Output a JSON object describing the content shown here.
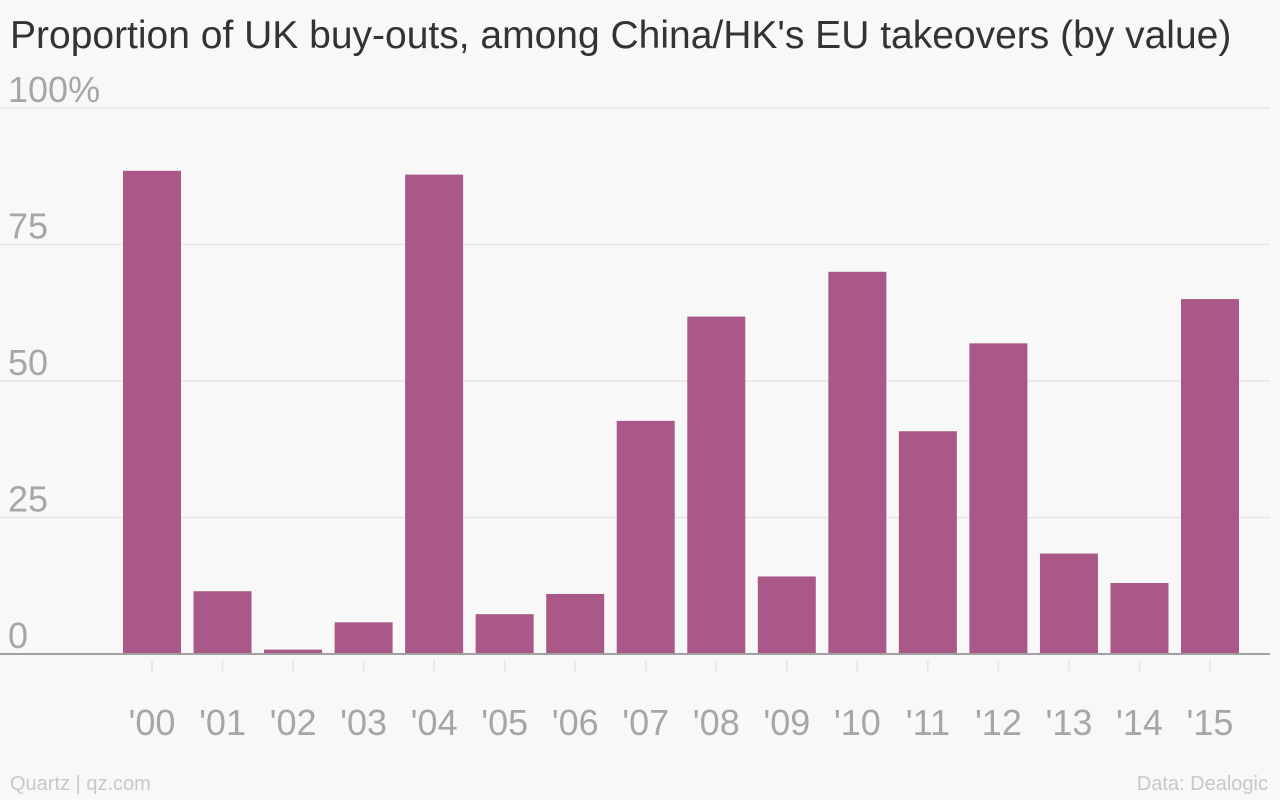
{
  "chart_data": {
    "type": "bar",
    "title": "Proportion of UK buy-outs, among China/HK's EU takeovers (by value)",
    "categories": [
      "'00",
      "'01",
      "'02",
      "'03",
      "'04",
      "'05",
      "'06",
      "'07",
      "'08",
      "'09",
      "'10",
      "'11",
      "'12",
      "'13",
      "'14",
      "'15"
    ],
    "values": [
      88.5,
      11.5,
      0.8,
      5.8,
      87.8,
      7.3,
      11.0,
      42.7,
      61.8,
      14.2,
      70.0,
      40.8,
      56.9,
      18.4,
      13.0,
      65.0
    ],
    "ylim": [
      0,
      100
    ],
    "yticks": [
      0,
      25,
      50,
      75,
      100
    ],
    "ytick_labels": [
      "0",
      "25",
      "50",
      "75",
      "100%"
    ],
    "xlabel": "",
    "ylabel": "",
    "grid": true,
    "legend": "none"
  },
  "colors": {
    "bar": "#a95887",
    "grid": "#e6e6e6",
    "axis": "#a0a0a0",
    "tick_label": "#a6a6a6",
    "title": "#333333",
    "footer": "#c8c8c8",
    "background": "#f8f8f8"
  },
  "footer": {
    "source_left": "Quartz | qz.com",
    "source_right": "Data: Dealogic"
  }
}
